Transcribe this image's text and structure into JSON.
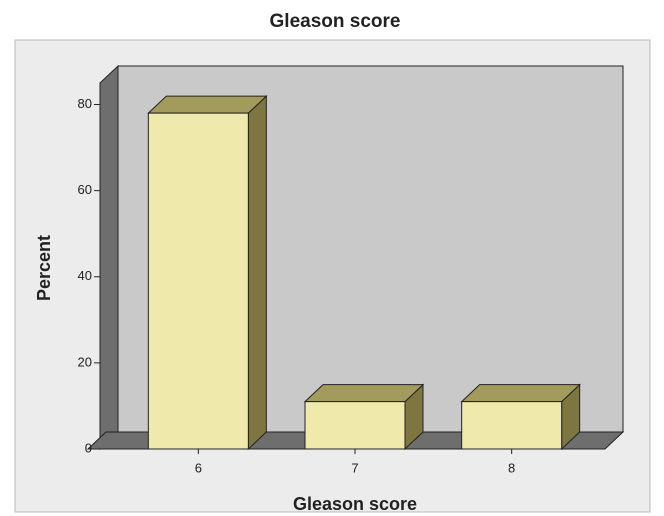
{
  "chart_data": {
    "type": "bar3d",
    "title": "Gleason score",
    "x_label": "Gleason score",
    "y_label": "Percent",
    "categories": [
      "6",
      "7",
      "8"
    ],
    "values": [
      78,
      11,
      11
    ],
    "color": "#efe9ac",
    "ylim": [
      0,
      85
    ],
    "yticks": [
      0,
      20,
      40,
      60,
      80
    ]
  }
}
